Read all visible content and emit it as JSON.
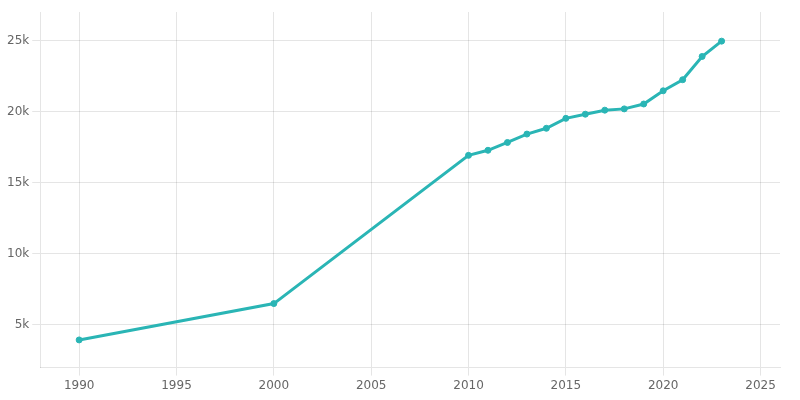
{
  "chart_data": {
    "type": "line",
    "x": [
      1990,
      2000,
      2010,
      2011,
      2012,
      2013,
      2014,
      2015,
      2016,
      2017,
      2018,
      2019,
      2020,
      2021,
      2022,
      2023
    ],
    "values": [
      3945,
      6500,
      16921,
      17279,
      17827,
      18418,
      18824,
      19522,
      19815,
      20099,
      20189,
      20533,
      21461,
      22239,
      23873,
      24952
    ],
    "color": "#2ab5b5",
    "marker": "circle",
    "xlim": [
      1988,
      2026
    ],
    "xticks": [
      1990,
      1995,
      2000,
      2005,
      2010,
      2015,
      2020,
      2025
    ],
    "ylim": [
      2000,
      27000
    ],
    "yticks": [
      {
        "value": 5000,
        "label": "5k"
      },
      {
        "value": 10000,
        "label": "10k"
      },
      {
        "value": 15000,
        "label": "15k"
      },
      {
        "value": 20000,
        "label": "20k"
      },
      {
        "value": 25000,
        "label": "25k"
      }
    ],
    "grid": true
  }
}
